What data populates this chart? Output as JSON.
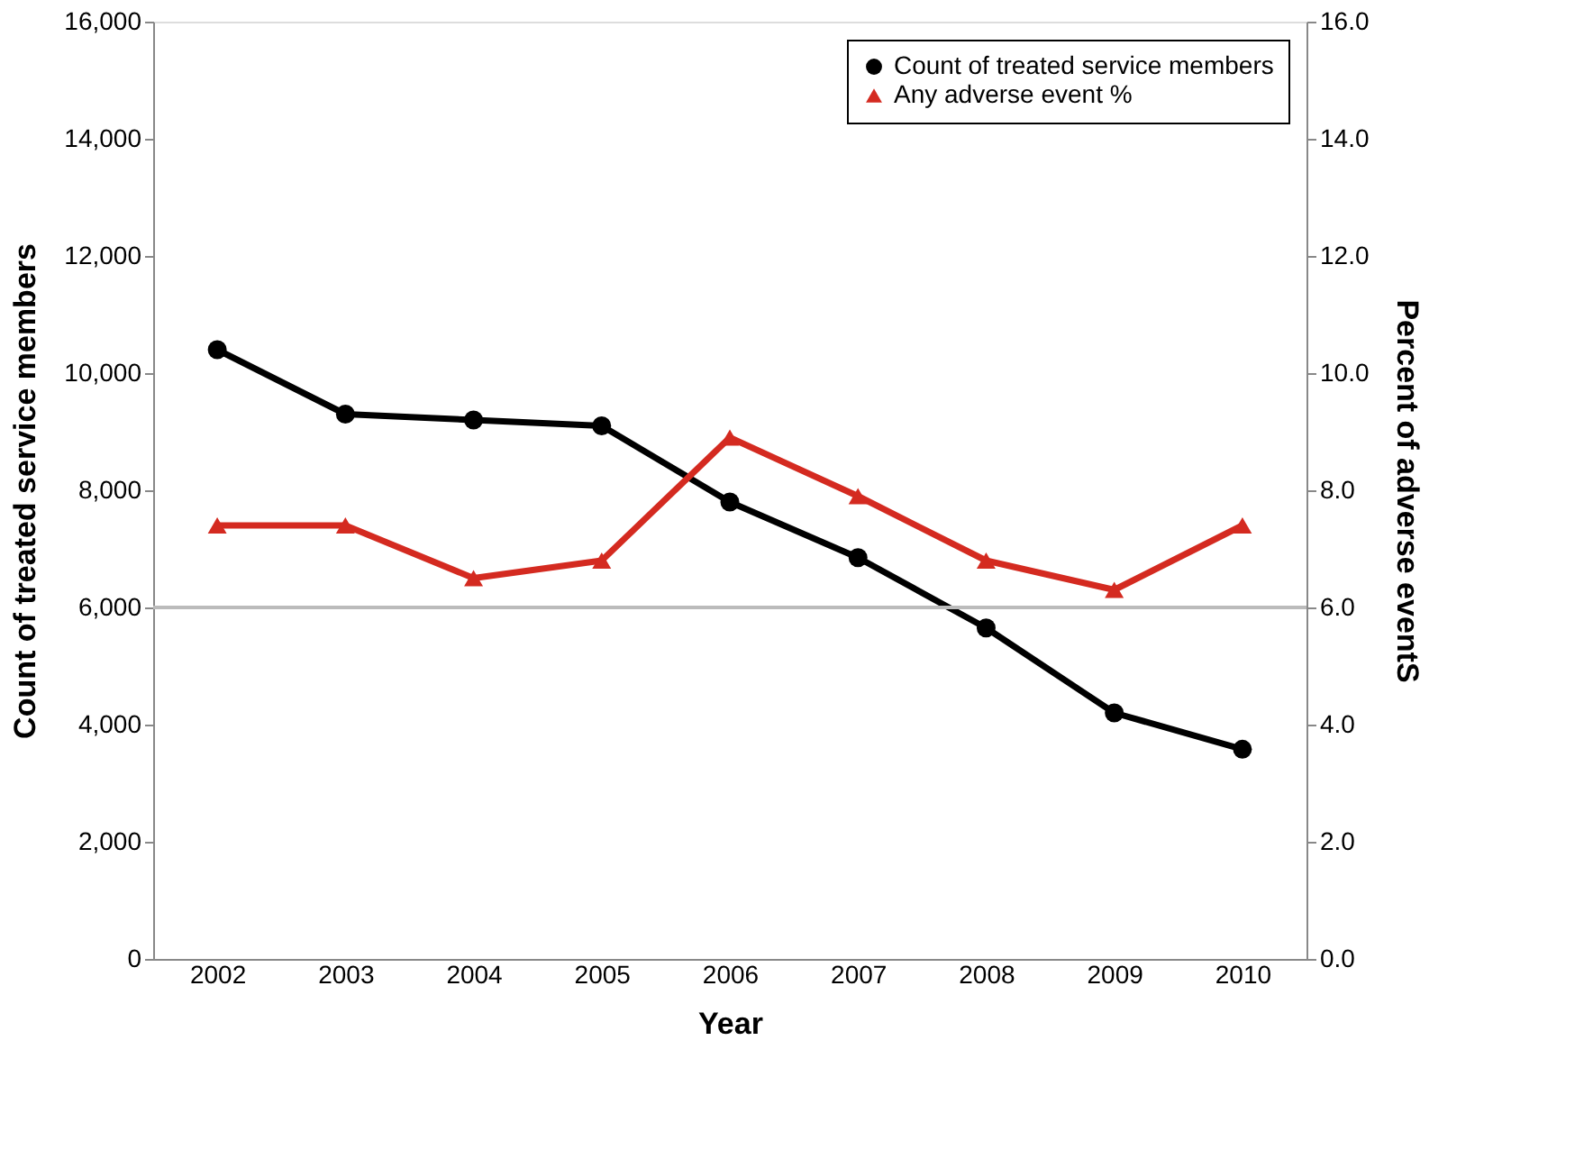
{
  "chart_data": {
    "type": "line",
    "xlabel": "Year",
    "ylabel": "Count of treated service members",
    "y2label": "Percent of adverse eventS",
    "categories": [
      "2002",
      "2003",
      "2004",
      "2005",
      "2006",
      "2007",
      "2008",
      "2009",
      "2010"
    ],
    "series": [
      {
        "name": "Count of treated service members",
        "color": "#000000",
        "marker": "circle",
        "values": [
          10400,
          9300,
          9200,
          9100,
          7800,
          6850,
          5650,
          4200,
          3580
        ]
      },
      {
        "name": "Any adverse event %",
        "color": "#d42a20",
        "marker": "triangle",
        "axis": "y2",
        "values": [
          7.4,
          7.4,
          6.5,
          6.8,
          8.9,
          7.9,
          6.8,
          6.3,
          7.4
        ]
      }
    ],
    "ylim": [
      0,
      16000
    ],
    "yticks": [
      {
        "value": 0,
        "label": "0"
      },
      {
        "value": 2000,
        "label": "2,000"
      },
      {
        "value": 4000,
        "label": "4,000"
      },
      {
        "value": 6000,
        "label": "6,000"
      },
      {
        "value": 8000,
        "label": "8,000"
      },
      {
        "value": 10000,
        "label": "10,000"
      },
      {
        "value": 12000,
        "label": "12,000"
      },
      {
        "value": 14000,
        "label": "14,000"
      },
      {
        "value": 16000,
        "label": "16,000"
      }
    ],
    "y2lim": [
      0,
      16
    ],
    "y2ticks": [
      {
        "value": 0,
        "label": "0.0"
      },
      {
        "value": 2,
        "label": "2.0"
      },
      {
        "value": 4,
        "label": "4.0"
      },
      {
        "value": 6,
        "label": "6.0"
      },
      {
        "value": 8,
        "label": "8.0"
      },
      {
        "value": 10,
        "label": "10.0"
      },
      {
        "value": 12,
        "label": "12.0"
      },
      {
        "value": 14,
        "label": "14.0"
      },
      {
        "value": 16,
        "label": "16.0"
      }
    ],
    "ref_lines": [
      {
        "axis": "y",
        "value": 6000,
        "color": "#bbbbbb"
      }
    ],
    "legend": "top right",
    "grid": false,
    "line_style": "solid"
  }
}
